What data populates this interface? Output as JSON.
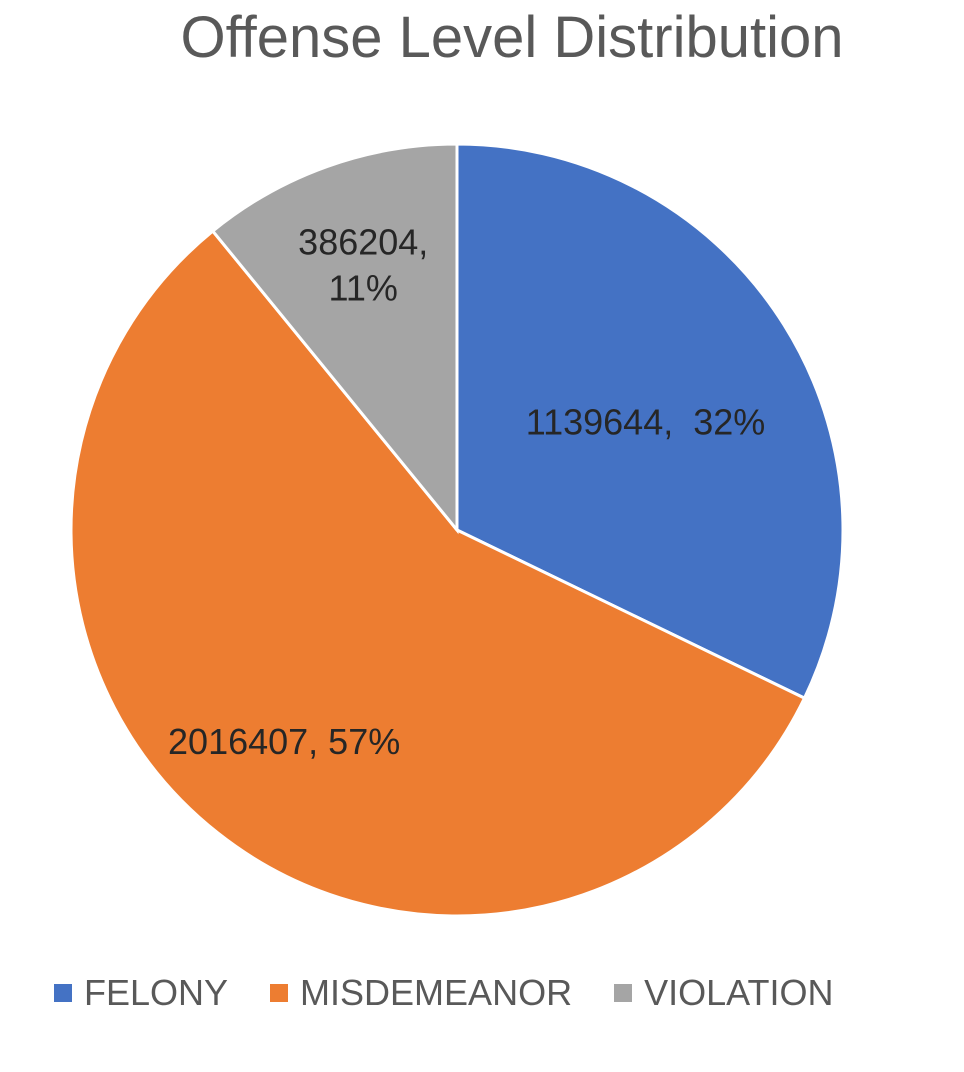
{
  "chart_data": {
    "type": "pie",
    "title": "Offense Level Distribution",
    "categories": [
      "FELONY",
      "MISDEMEANOR",
      "VIOLATION"
    ],
    "values": [
      1139644,
      2016407,
      386204
    ],
    "percent_labels": [
      "32%",
      "57%",
      "11%"
    ],
    "data_labels": [
      "1139644,  32%",
      "2016407, 57%",
      [
        "386204,",
        "11%"
      ]
    ],
    "colors": [
      "#4472C4",
      "#ED7D31",
      "#A5A5A5"
    ],
    "legend_position": "bottom",
    "start_angle": "12 o'clock",
    "direction": "clockwise"
  }
}
